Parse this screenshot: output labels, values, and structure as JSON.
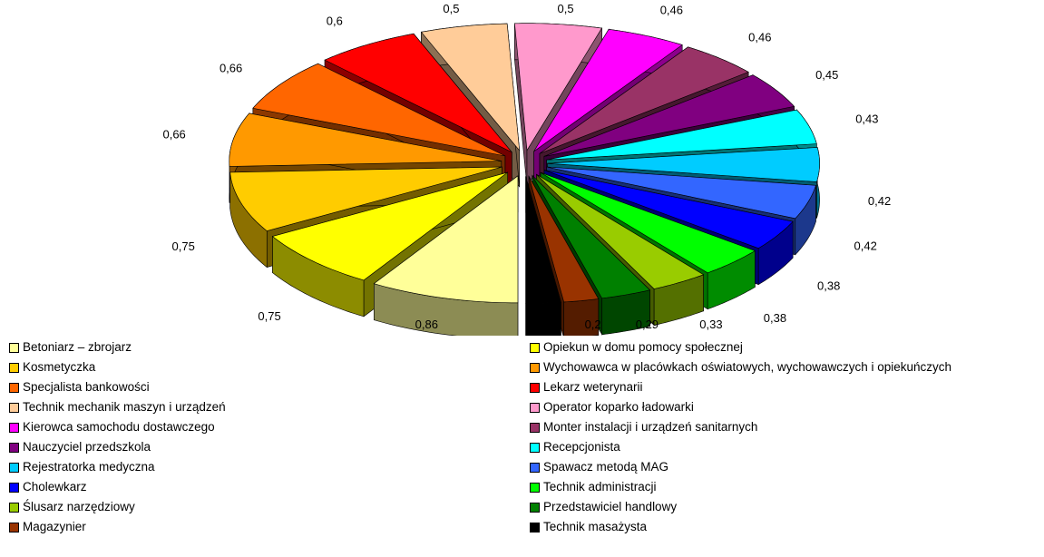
{
  "chart_data": {
    "type": "pie",
    "style": "3d-exploded",
    "legend_position": "bottom",
    "slices": [
      {
        "label": "Betoniarz – zbrojarz",
        "value": 0.86,
        "value_label": "0,86",
        "color": "#FFFF99"
      },
      {
        "label": "Opiekun w domu pomocy społecznej",
        "value": 0.75,
        "value_label": "0,75",
        "color": "#FFFF00"
      },
      {
        "label": "Kosmetyczka",
        "value": 0.75,
        "value_label": "0,75",
        "color": "#FFCC00"
      },
      {
        "label": "Wychowawca w placówkach oświatowych, wychowawczych i opiekuńczych",
        "value": 0.66,
        "value_label": "0,66",
        "color": "#FF9900"
      },
      {
        "label": "Specjalista bankowości",
        "value": 0.66,
        "value_label": "0,66",
        "color": "#FF6600"
      },
      {
        "label": "Lekarz weterynarii",
        "value": 0.6,
        "value_label": "0,6",
        "color": "#FF0000"
      },
      {
        "label": "Technik mechanik maszyn i urządzeń",
        "value": 0.5,
        "value_label": "0,5",
        "color": "#FFCC99"
      },
      {
        "label": "Operator koparko ładowarki",
        "value": 0.5,
        "value_label": "0,5",
        "color": "#FF99CC"
      },
      {
        "label": "Kierowca samochodu dostawczego",
        "value": 0.46,
        "value_label": "0,46",
        "color": "#FF00FF"
      },
      {
        "label": "Monter instalacji i urządzeń sanitarnych",
        "value": 0.46,
        "value_label": "0,46",
        "color": "#993366"
      },
      {
        "label": "Nauczyciel przedszkola",
        "value": 0.45,
        "value_label": "0,45",
        "color": "#800080"
      },
      {
        "label": "Recepcjonista",
        "value": 0.43,
        "value_label": "0,43",
        "color": "#00FFFF"
      },
      {
        "label": "Rejestratorka medyczna",
        "value": 0.42,
        "value_label": "0,42",
        "color": "#00CCFF"
      },
      {
        "label": "Spawacz metodą MAG",
        "value": 0.42,
        "value_label": "0,42",
        "color": "#3366FF"
      },
      {
        "label": "Cholewkarz",
        "value": 0.38,
        "value_label": "0,38",
        "color": "#0000FF"
      },
      {
        "label": "Technik administracji",
        "value": 0.38,
        "value_label": "0,38",
        "color": "#00FF00"
      },
      {
        "label": "Ślusarz narzędziowy",
        "value": 0.33,
        "value_label": "0,33",
        "color": "#99CC00"
      },
      {
        "label": "Przedstawiciel handlowy",
        "value": 0.29,
        "value_label": "0,29",
        "color": "#008000"
      },
      {
        "label": "Magazynier",
        "value": 0.2,
        "value_label": "0,2",
        "color": "#993300"
      },
      {
        "label": "Technik masażysta",
        "value": 0.2,
        "value_label": "0,2",
        "color": "#000000"
      }
    ]
  }
}
